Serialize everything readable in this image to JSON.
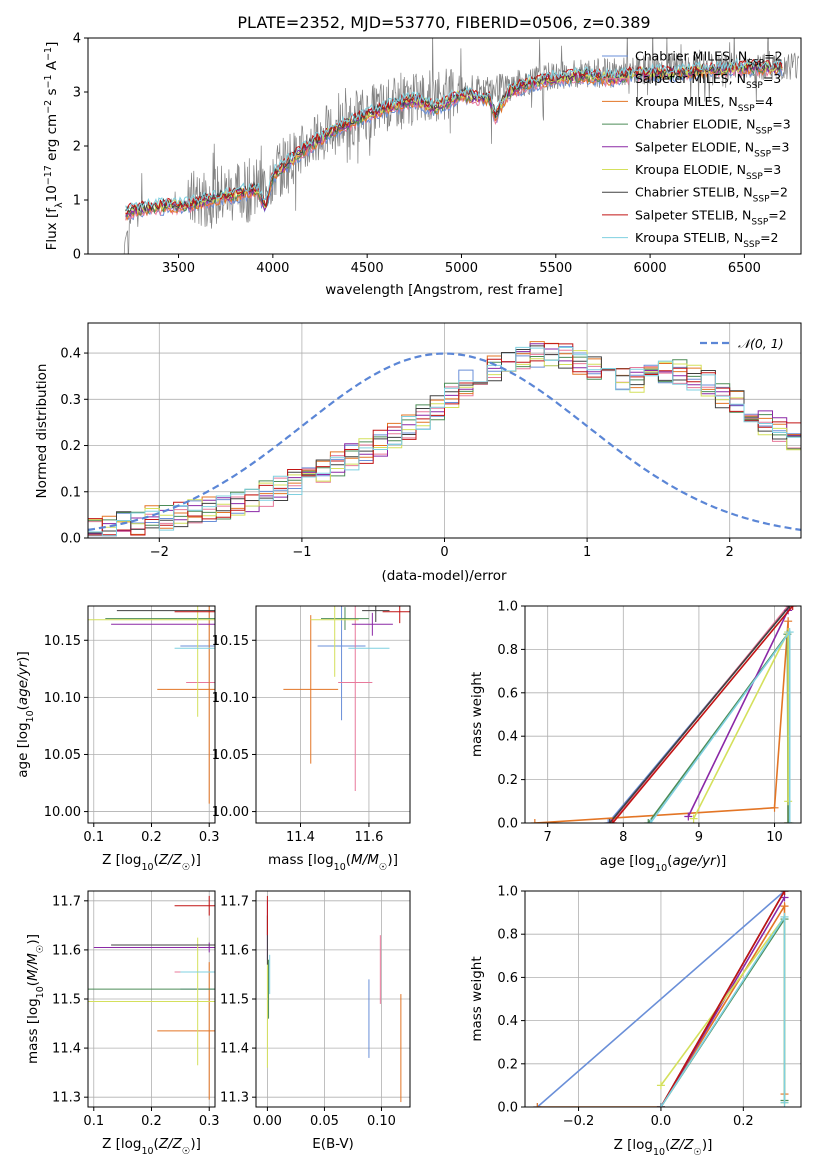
{
  "title": "PLATE=2352, MJD=53770, FIBERID=0506, z=0.389",
  "models": [
    {
      "name": "Chabrier MILES",
      "nssp": "2",
      "color": "#6a8fd8"
    },
    {
      "name": "Salpeter MILES",
      "nssp": "3",
      "color": "#e8799b"
    },
    {
      "name": "Kroupa MILES",
      "nssp": "4",
      "color": "#e37525"
    },
    {
      "name": "Chabrier ELODIE",
      "nssp": "3",
      "color": "#4c8c57"
    },
    {
      "name": "Salpeter ELODIE",
      "nssp": "3",
      "color": "#8b28a6"
    },
    {
      "name": "Kroupa ELODIE",
      "nssp": "3",
      "color": "#d4e05c"
    },
    {
      "name": "Chabrier STELIB",
      "nssp": "2",
      "color": "#404040"
    },
    {
      "name": "Salpeter STELIB",
      "nssp": "2",
      "color": "#c21414"
    },
    {
      "name": "Kroupa STELIB",
      "nssp": "2",
      "color": "#7fd0e0"
    }
  ],
  "nssp_prefix": "N",
  "nssp_sub": "SSP",
  "spectrum_color": "#808080",
  "gauss_color": "#5b86d6",
  "gauss_label": "N(0,1)",
  "chart_data": [
    {
      "type": "line",
      "id": "spectrum",
      "xlabel": "wavelength [Angstrom, rest frame]",
      "ylabel": "Flux [f_λ 10^-17 erg cm^-2 s^-1 A^-1]",
      "xlim": [
        3020,
        6800
      ],
      "ylim": [
        0,
        4
      ],
      "xticks": [
        3500,
        4000,
        4500,
        5000,
        5500,
        6000,
        6500
      ],
      "yticks": [
        0,
        1,
        2,
        3,
        4
      ],
      "grid": false,
      "legend": "right",
      "data_continuum": {
        "x": [
          3200,
          3250,
          3400,
          3550,
          3650,
          3800,
          3950,
          4000,
          4150,
          4300,
          4450,
          4600,
          4750,
          4850,
          5000,
          5150,
          5250,
          5350,
          5500,
          5650,
          5800,
          5950,
          6100,
          6300,
          6500,
          6700
        ],
        "y": [
          0.0,
          0.75,
          0.85,
          0.95,
          1.05,
          1.15,
          1.2,
          1.5,
          1.9,
          2.3,
          2.55,
          2.75,
          2.85,
          2.95,
          3.0,
          3.05,
          3.1,
          3.2,
          3.3,
          3.35,
          3.35,
          3.4,
          3.45,
          3.45,
          3.5,
          3.5
        ]
      },
      "models_continuum": {
        "x": [
          3220,
          3250,
          3400,
          3550,
          3650,
          3800,
          3920,
          3960,
          4000,
          4150,
          4300,
          4450,
          4600,
          4750,
          4860,
          5000,
          5150,
          5180,
          5250,
          5350,
          5500,
          5650,
          5800,
          5950,
          6100,
          6300,
          6500,
          6700
        ],
        "y": [
          0.75,
          0.8,
          0.88,
          0.9,
          1.0,
          1.1,
          1.2,
          0.85,
          1.45,
          1.9,
          2.25,
          2.5,
          2.7,
          2.85,
          2.7,
          2.95,
          2.85,
          2.55,
          3.0,
          3.15,
          3.25,
          3.3,
          3.25,
          3.35,
          3.35,
          3.4,
          3.45,
          3.45
        ]
      }
    },
    {
      "type": "bar",
      "id": "residual-histograms",
      "xlabel": "(data-model)/error",
      "ylabel": "Normed distribution",
      "xlim": [
        -2.5,
        2.5
      ],
      "ylim": [
        0,
        0.465
      ],
      "xticks": [
        -2,
        -1,
        0,
        1,
        2
      ],
      "yticks": [
        0.0,
        0.1,
        0.2,
        0.3,
        0.4
      ],
      "grid": true,
      "legend": "top-right",
      "bin_width": 0.1,
      "mean_profile": [
        0.02,
        0.025,
        0.03,
        0.035,
        0.04,
        0.045,
        0.05,
        0.055,
        0.06,
        0.07,
        0.075,
        0.085,
        0.095,
        0.105,
        0.12,
        0.13,
        0.145,
        0.16,
        0.175,
        0.19,
        0.205,
        0.22,
        0.24,
        0.26,
        0.285,
        0.31,
        0.335,
        0.355,
        0.37,
        0.38,
        0.39,
        0.395,
        0.395,
        0.39,
        0.38,
        0.37,
        0.36,
        0.35,
        0.345,
        0.35,
        0.36,
        0.36,
        0.35,
        0.335,
        0.31,
        0.29,
        0.27,
        0.25,
        0.235,
        0.22
      ]
    },
    {
      "type": "scatter",
      "id": "age-vs-z",
      "xlabel": "Z [log10(Z/Z☉)]",
      "ylabel": "age [log10(age/yr)]",
      "xlim": [
        0.09,
        0.31
      ],
      "ylim": [
        9.99,
        10.18
      ],
      "xticks": [
        0.1,
        0.2,
        0.3
      ],
      "yticks": [
        10.0,
        10.05,
        10.1,
        10.15
      ],
      "grid": true,
      "points": [
        {
          "x": 0.3,
          "y": 10.145,
          "xerr": 0.05,
          "yerr": 0.0
        },
        {
          "x": 0.3,
          "y": 10.113,
          "xerr": 0.04,
          "yerr": 0.0
        },
        {
          "x": 0.3,
          "y": 10.107,
          "xerr": 0.09,
          "yerr": 0.1
        },
        {
          "x": 0.3,
          "y": 10.169,
          "xerr": 0.18,
          "yerr": 0.0
        },
        {
          "x": 0.3,
          "y": 10.164,
          "xerr": 0.17,
          "yerr": 0.0
        },
        {
          "x": 0.28,
          "y": 10.168,
          "xerr": 0.19,
          "yerr": 0.085
        },
        {
          "x": 0.3,
          "y": 10.176,
          "xerr": 0.16,
          "yerr": 0.0
        },
        {
          "x": 0.3,
          "y": 10.175,
          "xerr": 0.06,
          "yerr": 0.0
        },
        {
          "x": 0.3,
          "y": 10.143,
          "xerr": 0.06,
          "yerr": 0.0
        }
      ]
    },
    {
      "type": "scatter",
      "id": "age-vs-mass",
      "xlabel": "mass [log10(M/M☉)]",
      "ylabel": "",
      "xlim": [
        11.27,
        11.72
      ],
      "ylim": [
        9.99,
        10.18
      ],
      "xticks": [
        11.4,
        11.6
      ],
      "yticks": [
        10.0,
        10.05,
        10.1,
        10.15
      ],
      "grid": true,
      "points": [
        {
          "x": 11.52,
          "y": 10.145,
          "xerr": 0.07,
          "yerr": 0.065
        },
        {
          "x": 11.56,
          "y": 10.113,
          "xerr": 0.05,
          "yerr": 0.095
        },
        {
          "x": 11.43,
          "y": 10.107,
          "xerr": 0.08,
          "yerr": 0.065
        },
        {
          "x": 11.53,
          "y": 10.169,
          "xerr": 0.07,
          "yerr": 0.01
        },
        {
          "x": 11.61,
          "y": 10.164,
          "xerr": 0.06,
          "yerr": 0.01
        },
        {
          "x": 11.5,
          "y": 10.168,
          "xerr": 0.07,
          "yerr": 0.05
        },
        {
          "x": 11.62,
          "y": 10.176,
          "xerr": 0.04,
          "yerr": 0.01
        },
        {
          "x": 11.69,
          "y": 10.175,
          "xerr": 0.05,
          "yerr": 0.01
        },
        {
          "x": 11.6,
          "y": 10.143,
          "xerr": 0.06,
          "yerr": 0.0
        }
      ]
    },
    {
      "type": "line",
      "id": "weight-vs-age",
      "xlabel": "age [log10(age/yr)]",
      "ylabel": "mass weight",
      "xlim": [
        6.7,
        10.35
      ],
      "ylim": [
        0,
        1
      ],
      "xticks": [
        7,
        8,
        9,
        10
      ],
      "yticks": [
        0.0,
        0.2,
        0.4,
        0.6,
        0.8,
        1.0
      ],
      "grid": true,
      "series": [
        {
          "x": [
            7.8,
            10.2
          ],
          "y": [
            0.0,
            1.0
          ]
        },
        {
          "x": [
            7.84,
            10.18
          ],
          "y": [
            0.0,
            1.0
          ]
        },
        {
          "x": [
            6.83,
            10.0,
            10.18,
            10.18
          ],
          "y": [
            0.0,
            0.07,
            0.93,
            0.0
          ]
        },
        {
          "x": [
            8.33,
            10.17,
            10.18
          ],
          "y": [
            0.0,
            0.87,
            0.0
          ]
        },
        {
          "x": [
            8.86,
            10.18
          ],
          "y": [
            0.03,
            0.98
          ]
        },
        {
          "x": [
            8.93,
            10.18,
            10.18
          ],
          "y": [
            0.02,
            0.88,
            0.1
          ]
        },
        {
          "x": [
            7.82,
            10.2
          ],
          "y": [
            0.0,
            1.0
          ]
        },
        {
          "x": [
            7.86,
            10.24
          ],
          "y": [
            0.0,
            1.0
          ]
        },
        {
          "x": [
            8.36,
            10.2,
            10.2
          ],
          "y": [
            0.0,
            0.88,
            0.0
          ]
        }
      ]
    },
    {
      "type": "scatter",
      "id": "mass-vs-z",
      "xlabel": "Z [log10(Z/Z☉)]",
      "ylabel": "mass [log10(M/M☉)]",
      "xlim": [
        0.09,
        0.31
      ],
      "ylim": [
        11.28,
        11.72
      ],
      "xticks": [
        0.1,
        0.2,
        0.3
      ],
      "yticks": [
        11.3,
        11.4,
        11.5,
        11.6,
        11.7
      ],
      "grid": true,
      "points": [
        {
          "x": 0.3,
          "y": 11.52,
          "xerr": 0.05,
          "yerr": 0.0
        },
        {
          "x": 0.3,
          "y": 11.555,
          "xerr": 0.06,
          "yerr": 0.0
        },
        {
          "x": 0.3,
          "y": 11.435,
          "xerr": 0.09,
          "yerr": 0.14
        },
        {
          "x": 0.3,
          "y": 11.52,
          "xerr": 0.21,
          "yerr": 0.0
        },
        {
          "x": 0.3,
          "y": 11.605,
          "xerr": 0.2,
          "yerr": 0.01
        },
        {
          "x": 0.28,
          "y": 11.495,
          "xerr": 0.19,
          "yerr": 0.13
        },
        {
          "x": 0.3,
          "y": 11.61,
          "xerr": 0.17,
          "yerr": 0.0
        },
        {
          "x": 0.3,
          "y": 11.69,
          "xerr": 0.06,
          "yerr": 0.02
        },
        {
          "x": 0.3,
          "y": 11.555,
          "xerr": 0.05,
          "yerr": 0.0
        }
      ]
    },
    {
      "type": "scatter",
      "id": "mass-vs-ebv",
      "xlabel": "E(B-V)",
      "ylabel": "",
      "xlim": [
        -0.01,
        0.125
      ],
      "ylim": [
        11.28,
        11.72
      ],
      "xticks": [
        0.0,
        0.05,
        0.1
      ],
      "yticks": [
        11.3,
        11.4,
        11.5,
        11.6,
        11.7
      ],
      "grid": true,
      "points": [
        {
          "x": 0.089,
          "y": 11.46,
          "xerr": 0.0,
          "yerr": 0.08
        },
        {
          "x": 0.099,
          "y": 11.56,
          "xerr": 0.0,
          "yerr": 0.07
        },
        {
          "x": 0.117,
          "y": 11.4,
          "xerr": 0.0,
          "yerr": 0.11
        },
        {
          "x": 0.001,
          "y": 11.52,
          "xerr": 0.0,
          "yerr": 0.06
        },
        {
          "x": 0.0,
          "y": 11.64,
          "xerr": 0.0,
          "yerr": 0.06
        },
        {
          "x": 0.0,
          "y": 11.47,
          "xerr": 0.0,
          "yerr": 0.11
        },
        {
          "x": 0.0,
          "y": 11.62,
          "xerr": 0.0,
          "yerr": 0.05
        },
        {
          "x": 0.0,
          "y": 11.67,
          "xerr": 0.0,
          "yerr": 0.04
        },
        {
          "x": 0.002,
          "y": 11.55,
          "xerr": 0.0,
          "yerr": 0.04
        }
      ]
    },
    {
      "type": "line",
      "id": "weight-vs-z",
      "xlabel": "Z [log10(Z/Z☉)]",
      "ylabel": "mass weight",
      "xlim": [
        -0.33,
        0.34
      ],
      "ylim": [
        0,
        1
      ],
      "xticks": [
        -0.2,
        0.0,
        0.2
      ],
      "yticks": [
        0.0,
        0.2,
        0.4,
        0.6,
        0.8,
        1.0
      ],
      "grid": true,
      "series": [
        {
          "x": [
            -0.3,
            0.3
          ],
          "y": [
            0.0,
            1.0
          ]
        },
        {
          "x": [
            0.0,
            0.3
          ],
          "y": [
            0.0,
            1.0
          ]
        },
        {
          "x": [
            -0.3,
            0.0,
            0.3,
            0.3
          ],
          "y": [
            0.0,
            0.0,
            0.93,
            0.06
          ]
        },
        {
          "x": [
            0.0,
            0.3,
            0.3
          ],
          "y": [
            0.0,
            0.87,
            0.03
          ]
        },
        {
          "x": [
            0.0,
            0.3
          ],
          "y": [
            0.0,
            0.97
          ]
        },
        {
          "x": [
            0.0,
            0.3,
            0.3
          ],
          "y": [
            0.1,
            0.88,
            0.02
          ]
        },
        {
          "x": [
            0.0,
            0.3
          ],
          "y": [
            0.0,
            1.0
          ]
        },
        {
          "x": [
            0.0,
            0.3
          ],
          "y": [
            0.0,
            1.0
          ]
        },
        {
          "x": [
            0.0,
            0.3,
            0.3
          ],
          "y": [
            0.0,
            0.88,
            0.02
          ]
        }
      ]
    }
  ]
}
